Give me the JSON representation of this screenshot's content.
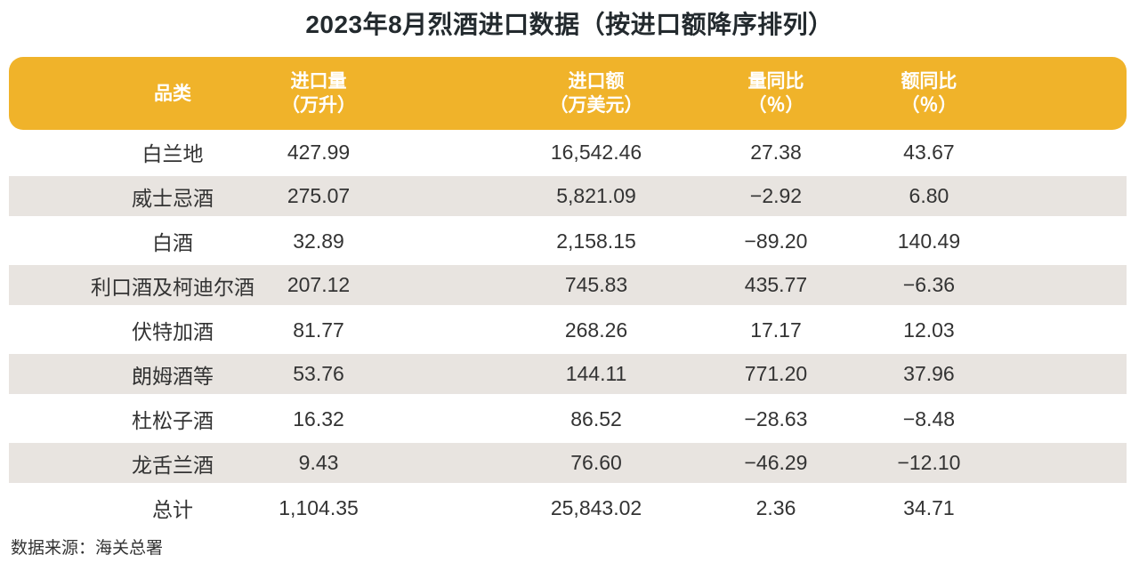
{
  "colors": {
    "header_background": "#f0b32a",
    "header_text": "#ffffff",
    "stripe_background": "#e8e4e0",
    "title_text": "#232a2e",
    "body_text": "#333333",
    "page_background": "#ffffff"
  },
  "chart_data": {
    "type": "table",
    "title": "2023年8月烈酒进口数据（按进口额降序排列）",
    "columns": [
      {
        "line1": "品类",
        "line2": ""
      },
      {
        "line1": "进口量",
        "line2": "（万升）"
      },
      {
        "line1": "进口额",
        "line2": "（万美元）"
      },
      {
        "line1": "量同比",
        "line2": "（％）"
      },
      {
        "line1": "额同比",
        "line2": "（％）"
      }
    ],
    "rows": [
      [
        "白兰地",
        "427.99",
        "16,542.46",
        "27.38",
        "43.67"
      ],
      [
        "威士忌酒",
        "275.07",
        "5,821.09",
        "−2.92",
        "6.80"
      ],
      [
        "白酒",
        "32.89",
        "2,158.15",
        "−89.20",
        "140.49"
      ],
      [
        "利口酒及柯迪尔酒",
        "207.12",
        "745.83",
        "435.77",
        "−6.36"
      ],
      [
        "伏特加酒",
        "81.77",
        "268.26",
        "17.17",
        "12.03"
      ],
      [
        "朗姆酒等",
        "53.76",
        "144.11",
        "771.20",
        "37.96"
      ],
      [
        "杜松子酒",
        "16.32",
        "86.52",
        "−28.63",
        "−8.48"
      ],
      [
        "龙舌兰酒",
        "9.43",
        "76.60",
        "−46.29",
        "−12.10"
      ],
      [
        "总计",
        "1,104.35",
        "25,843.02",
        "2.36",
        "34.71"
      ]
    ],
    "source": "数据来源：海关总署"
  }
}
